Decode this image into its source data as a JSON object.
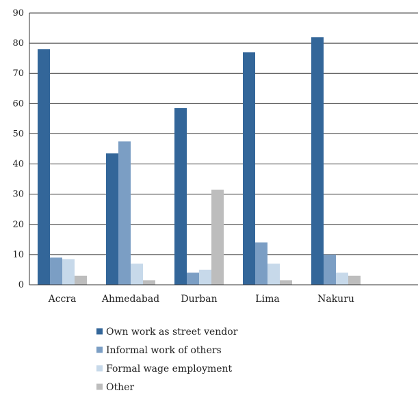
{
  "chart_data": {
    "type": "bar",
    "categories": [
      "Accra",
      "Ahmedabad",
      "Durban",
      "Lima",
      "Nakuru"
    ],
    "series": [
      {
        "name": "Own work as street vendor",
        "values": [
          78,
          43.5,
          58.5,
          77,
          82
        ],
        "color": "#336699"
      },
      {
        "name": "Informal work of others",
        "values": [
          9,
          47.5,
          4,
          14,
          10
        ],
        "color": "#7b9ec4"
      },
      {
        "name": "Formal wage employment",
        "values": [
          8.5,
          7,
          5,
          7,
          4
        ],
        "color": "#c7d9ea"
      },
      {
        "name": "Other",
        "values": [
          3,
          1.5,
          31.5,
          1.5,
          3
        ],
        "color": "#bdbdbd"
      }
    ],
    "ylim": [
      0,
      90
    ],
    "yticks": [
      0,
      10,
      20,
      30,
      40,
      50,
      60,
      70,
      80,
      90
    ],
    "title": "",
    "xlabel": "",
    "ylabel": "",
    "grid": true,
    "legend_position": "bottom"
  }
}
